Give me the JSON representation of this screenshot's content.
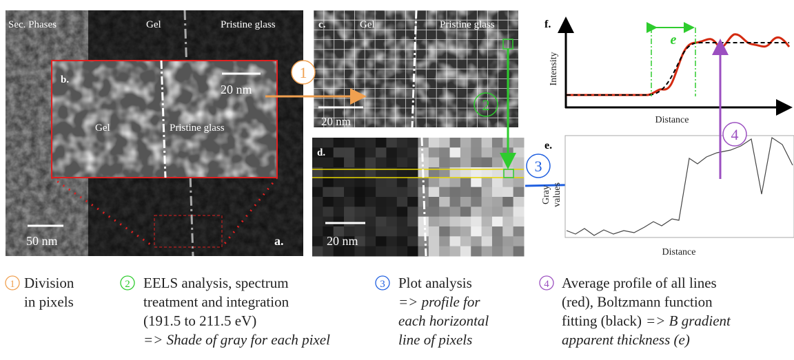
{
  "panel_a": {
    "left": "Sec. Phases",
    "middle": "Gel",
    "right": "Pristine glass",
    "scale": "50 nm",
    "tag": "a."
  },
  "panel_b": {
    "tag": "b.",
    "scale": "20 nm",
    "left": "Gel",
    "right": "Pristine glass"
  },
  "panel_c": {
    "tag": "c.",
    "left": "Gel",
    "right": "Pristine glass",
    "scale": "20 nm"
  },
  "panel_d": {
    "tag": "d.",
    "scale": "20 nm"
  },
  "panel_f": {
    "tag": "f.",
    "y_label": "Intensity",
    "x_label": "Distance",
    "marker": "e"
  },
  "panel_e": {
    "tag": "e.",
    "y_label": [
      "Gray",
      "values"
    ],
    "x_label": "Distance"
  },
  "steps": [
    {
      "number": "1",
      "lines": [
        "Division",
        "in pixels"
      ],
      "detail": []
    },
    {
      "number": "2",
      "lines": [
        "EELS analysis, spectrum",
        "treatment and integration",
        "(191.5 to 211.5 eV)"
      ],
      "detail": [
        "=> Shade of gray for each pixel"
      ]
    },
    {
      "number": "3",
      "lines": [
        "Plot analysis"
      ],
      "detail": [
        "=> profile for",
        "each horizontal",
        "line of pixels"
      ]
    },
    {
      "number": "4",
      "lines": [
        "Average profile of all lines",
        "(red), Boltzmann function",
        "fitting (black)"
      ],
      "detail": [
        "=> B gradient",
        "apparent thickness (e)"
      ]
    }
  ]
}
